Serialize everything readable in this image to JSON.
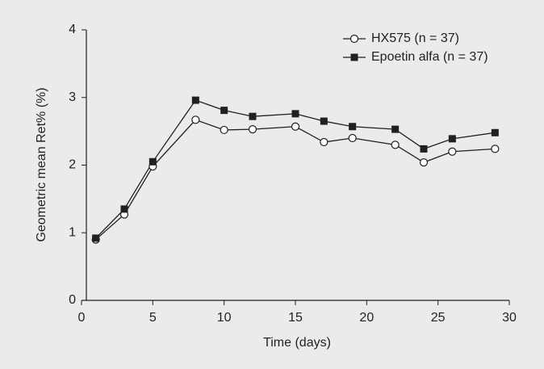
{
  "chart_data": {
    "type": "line",
    "x_label": "Time (days)",
    "y_label": "Geometric mean Ret% (%)",
    "x": [
      1,
      3,
      5,
      8,
      10,
      12,
      15,
      17,
      19,
      22,
      24,
      26,
      29
    ],
    "series": [
      {
        "name": "HX575 (n = 37)",
        "color": "#231f20",
        "marker": "open-circle",
        "values": [
          0.9,
          1.27,
          1.98,
          2.67,
          2.52,
          2.53,
          2.57,
          2.34,
          2.4,
          2.3,
          2.04,
          2.2,
          2.24
        ]
      },
      {
        "name": "Epoetin alfa (n = 37)",
        "color": "#231f20",
        "marker": "filled-square",
        "values": [
          0.92,
          1.35,
          2.05,
          2.96,
          2.81,
          2.72,
          2.76,
          2.65,
          2.57,
          2.53,
          2.24,
          2.39,
          2.48
        ]
      }
    ],
    "xlim": [
      0,
      30
    ],
    "xticks": [
      0,
      5,
      10,
      15,
      20,
      25,
      30
    ],
    "ylim": [
      0,
      4
    ],
    "yticks": [
      0,
      1,
      2,
      3,
      4
    ],
    "grid": false,
    "legend": "top-right"
  }
}
